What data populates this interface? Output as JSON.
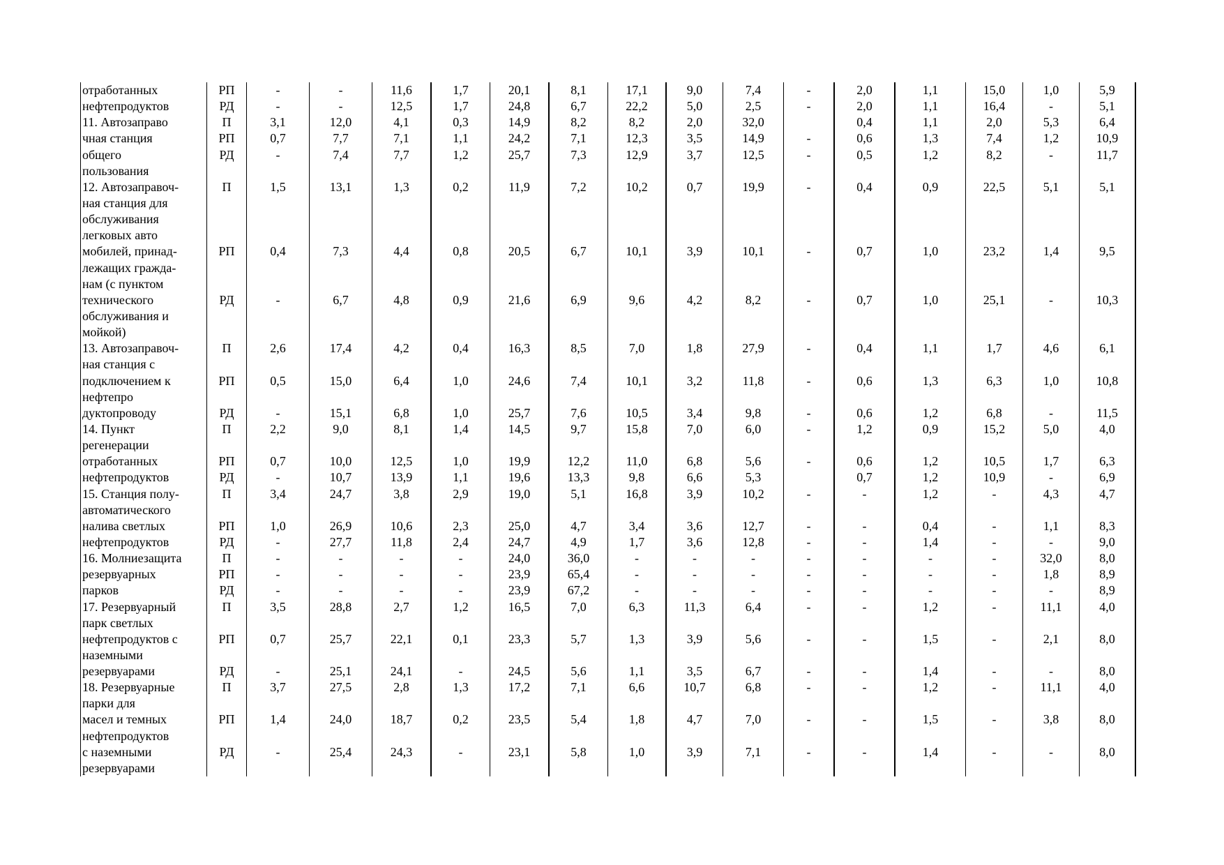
{
  "lines": [
    {
      "text": "отработанных",
      "code": "РП",
      "v": [
        "-",
        "-",
        "11,6",
        "1,7",
        "20,1",
        "8,1",
        "17,1",
        "9,0",
        "7,4",
        "-",
        "2,0",
        "1,1",
        "15,0",
        "1,0",
        "5,9"
      ]
    },
    {
      "text": "нефтепродуктов",
      "code": "РД",
      "v": [
        "-",
        "-",
        "12,5",
        "1,7",
        "24,8",
        "6,7",
        "22,2",
        "5,0",
        "2,5",
        "-",
        "2,0",
        "1,1",
        "16,4",
        "-",
        "5,1"
      ]
    },
    {
      "text": "11. Автозаправо",
      "code": "П",
      "v": [
        "3,1",
        "12,0",
        "4,1",
        "0,3",
        "14,9",
        "8,2",
        "8,2",
        "2,0",
        "32,0",
        "",
        "0,4",
        "1,1",
        "2,0",
        "5,3",
        "6,4"
      ]
    },
    {
      "text": "чная станция",
      "code": "РП",
      "v": [
        "0,7",
        "7,7",
        "7,1",
        "1,1",
        "24,2",
        "7,1",
        "12,3",
        "3,5",
        "14,9",
        "-",
        "0,6",
        "1,3",
        "7,4",
        "1,2",
        "10,9"
      ]
    },
    {
      "text": "общего",
      "code": "РД",
      "v": [
        "-",
        "7,4",
        "7,7",
        "1,2",
        "25,7",
        "7,3",
        "12,9",
        "3,7",
        "12,5",
        "-",
        "0,5",
        "1,2",
        "8,2",
        "-",
        "11,7"
      ]
    },
    {
      "text": "пользования"
    },
    {
      "text": "12. Автозаправоч-",
      "code": "П",
      "v": [
        "1,5",
        "13,1",
        "1,3",
        "0,2",
        "11,9",
        "7,2",
        "10,2",
        "0,7",
        "19,9",
        "-",
        "0,4",
        "0,9",
        "22,5",
        "5,1",
        "5,1"
      ]
    },
    {
      "text": "ная станция для"
    },
    {
      "text": "обслуживания"
    },
    {
      "text": "легковых авто"
    },
    {
      "text": "мобилей, принад-",
      "code": "РП",
      "v": [
        "0,4",
        "7,3",
        "4,4",
        "0,8",
        "20,5",
        "6,7",
        "10,1",
        "3,9",
        "10,1",
        "-",
        "0,7",
        "1,0",
        "23,2",
        "1,4",
        "9,5"
      ]
    },
    {
      "text": "лежащих гражда-"
    },
    {
      "text": "нам (с пунктом"
    },
    {
      "text": "технического",
      "code": "РД",
      "v": [
        "-",
        "6,7",
        "4,8",
        "0,9",
        "21,6",
        "6,9",
        "9,6",
        "4,2",
        "8,2",
        "-",
        "0,7",
        "1,0",
        "25,1",
        "-",
        "10,3"
      ]
    },
    {
      "text": "обслуживания и"
    },
    {
      "text": "мойкой)"
    },
    {
      "text": "13. Автозаправоч-",
      "code": "П",
      "v": [
        "2,6",
        "17,4",
        "4,2",
        "0,4",
        "16,3",
        "8,5",
        "7,0",
        "1,8",
        "27,9",
        "-",
        "0,4",
        "1,1",
        "1,7",
        "4,6",
        "6,1"
      ]
    },
    {
      "text": "ная станция с"
    },
    {
      "text": "подключением к",
      "code": "РП",
      "v": [
        "0,5",
        "15,0",
        "6,4",
        "1,0",
        "24,6",
        "7,4",
        "10,1",
        "3,2",
        "11,8",
        "-",
        "0,6",
        "1,3",
        "6,3",
        "1,0",
        "10,8"
      ]
    },
    {
      "text": "нефтепро"
    },
    {
      "text": "дуктопроводу",
      "code": "РД",
      "v": [
        "-",
        "15,1",
        "6,8",
        "1,0",
        "25,7",
        "7,6",
        "10,5",
        "3,4",
        "9,8",
        "-",
        "0,6",
        "1,2",
        "6,8",
        "-",
        "11,5"
      ]
    },
    {
      "text": "14. Пункт",
      "code": "П",
      "v": [
        "2,2",
        "9,0",
        "8,1",
        "1,4",
        "14,5",
        "9,7",
        "15,8",
        "7,0",
        "6,0",
        "-",
        "1,2",
        "0,9",
        "15,2",
        "5,0",
        "4,0"
      ]
    },
    {
      "text": "регенерации"
    },
    {
      "text": "отработанных",
      "code": "РП",
      "v": [
        "0,7",
        "10,0",
        "12,5",
        "1,0",
        "19,9",
        "12,2",
        "11,0",
        "6,8",
        "5,6",
        "-",
        "0,6",
        "1,2",
        "10,5",
        "1,7",
        "6,3"
      ]
    },
    {
      "text": "нефтепродуктов",
      "code": "РД",
      "v": [
        "-",
        "10,7",
        "13,9",
        "1,1",
        "19,6",
        "13,3",
        "9,8",
        "6,6",
        "5,3",
        "",
        "0,7",
        "1,2",
        "10,9",
        "-",
        "6,9"
      ]
    },
    {
      "text": "15. Станция полу-",
      "code": "П",
      "v": [
        "3,4",
        "24,7",
        "3,8",
        "2,9",
        "19,0",
        "5,1",
        "16,8",
        "3,9",
        "10,2",
        "-",
        "-",
        "1,2",
        "-",
        "4,3",
        "4,7"
      ]
    },
    {
      "text": "автоматического"
    },
    {
      "text": "налива светлых",
      "code": "РП",
      "v": [
        "1,0",
        "26,9",
        "10,6",
        "2,3",
        "25,0",
        "4,7",
        "3,4",
        "3,6",
        "12,7",
        "-",
        "-",
        "0,4",
        "-",
        "1,1",
        "8,3"
      ]
    },
    {
      "text": "нефтепродуктов",
      "code": "РД",
      "v": [
        "-",
        "27,7",
        "11,8",
        "2,4",
        "24,7",
        "4,9",
        "1,7",
        "3,6",
        "12,8",
        "-",
        "-",
        "1,4",
        "-",
        "-",
        "9,0"
      ]
    },
    {
      "text": "16. Молниезащита",
      "code": "П",
      "v": [
        "-",
        "-",
        "-",
        "-",
        "24,0",
        "36,0",
        "-",
        "-",
        "-",
        "-",
        "-",
        "-",
        "-",
        "32,0",
        "8,0"
      ]
    },
    {
      "text": "резервуарных",
      "code": "РП",
      "v": [
        "-",
        "-",
        "-",
        "-",
        "23,9",
        "65,4",
        "-",
        "-",
        "-",
        "-",
        "-",
        "-",
        "-",
        "1,8",
        "8,9"
      ]
    },
    {
      "text": "парков",
      "code": "РД",
      "v": [
        "-",
        "-",
        "-",
        "-",
        "23,9",
        "67,2",
        "-",
        "-",
        "-",
        "-",
        "-",
        "-",
        "-",
        "-",
        "8,9"
      ]
    },
    {
      "text": "17. Резервуарный",
      "code": "П",
      "v": [
        "3,5",
        "28,8",
        "2,7",
        "1,2",
        "16,5",
        "7,0",
        "6,3",
        "11,3",
        "6,4",
        "-",
        "-",
        "1,2",
        "-",
        "11,1",
        "4,0"
      ]
    },
    {
      "text": "парк светлых"
    },
    {
      "text": "нефтепродуктов с",
      "code": "РП",
      "v": [
        "0,7",
        "25,7",
        "22,1",
        "0,1",
        "23,3",
        "5,7",
        "1,3",
        "3,9",
        "5,6",
        "-",
        "-",
        "1,5",
        "-",
        "2,1",
        "8,0"
      ]
    },
    {
      "text": "наземными"
    },
    {
      "text": "резервуарами",
      "code": "РД",
      "v": [
        "-",
        "25,1",
        "24,1",
        "-",
        "24,5",
        "5,6",
        "1,1",
        "3,5",
        "6,7",
        "-",
        "-",
        "1,4",
        "-",
        "-",
        "8,0"
      ]
    },
    {
      "text": "18. Резервуарные",
      "code": "П",
      "v": [
        "3,7",
        "27,5",
        "2,8",
        "1,3",
        "17,2",
        "7,1",
        "6,6",
        "10,7",
        "6,8",
        "-",
        "-",
        "1,2",
        "-",
        "11,1",
        "4,0"
      ]
    },
    {
      "text": "парки для"
    },
    {
      "text": "масел и темных",
      "code": "РП",
      "v": [
        "1,4",
        "24,0",
        "18,7",
        "0,2",
        "23,5",
        "5,4",
        "1,8",
        "4,7",
        "7,0",
        "-",
        "-",
        "1,5",
        "-",
        "3,8",
        "8,0"
      ]
    },
    {
      "text": "нефтепродуктов"
    },
    {
      "text": "с наземными",
      "code": "РД",
      "v": [
        "-",
        "25,4",
        "24,3",
        "-",
        "23,1",
        "5,8",
        "1,0",
        "3,9",
        "7,1",
        "-",
        "-",
        "1,4",
        "-",
        "-",
        "8,0"
      ]
    },
    {
      "text": "резервуарами"
    }
  ]
}
